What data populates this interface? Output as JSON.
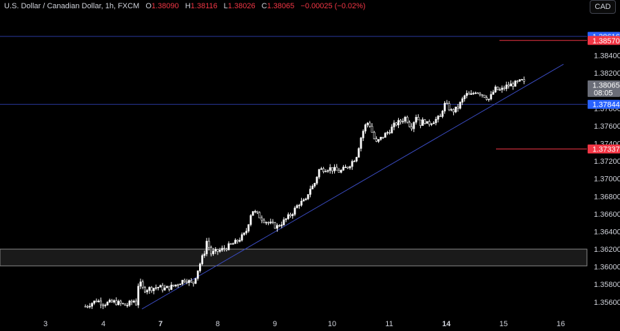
{
  "header": {
    "symbol": "U.S. Dollar / Canadian Dollar, 1h, FXCM",
    "open_label": "O",
    "open_value": "1.38090",
    "high_label": "H",
    "high_value": "1.38116",
    "low_label": "L",
    "low_value": "1.38026",
    "close_label": "C",
    "close_value": "1.38065",
    "change": "−0.00025 (−0.02%)"
  },
  "currency_button": "CAD",
  "colors": {
    "background": "#000000",
    "candle_up": "#ffffff",
    "candle_down": "#000000",
    "trendline": "#2a3a9f",
    "resistance_line": "#2a3a9f",
    "red_line": "#f23645",
    "blue_badge": "#2962ff",
    "red_badge": "#f23645",
    "gray_badge": "#6a6d78"
  },
  "chart_data": {
    "type": "candlestick",
    "ylim": [
      1.3545,
      1.3892
    ],
    "y_ticks": [
      "1.35600",
      "1.35800",
      "1.36000",
      "1.36200",
      "1.36400",
      "1.36600",
      "1.36800",
      "1.37000",
      "1.37200",
      "1.37400",
      "1.37600",
      "1.37800",
      "1.38000",
      "1.38200",
      "1.38400"
    ],
    "y_tick_values": [
      1.356,
      1.358,
      1.36,
      1.362,
      1.364,
      1.366,
      1.368,
      1.37,
      1.372,
      1.374,
      1.376,
      1.378,
      1.38,
      1.382,
      1.384
    ],
    "x_ticks": [
      {
        "label": "3",
        "day": 3,
        "bold": false
      },
      {
        "label": "4",
        "day": 4,
        "bold": false
      },
      {
        "label": "7",
        "day": 7,
        "bold": true
      },
      {
        "label": "8",
        "day": 8,
        "bold": false
      },
      {
        "label": "9",
        "day": 9,
        "bold": false
      },
      {
        "label": "10",
        "day": 10,
        "bold": false
      },
      {
        "label": "11",
        "day": 11,
        "bold": false
      },
      {
        "label": "14",
        "day": 14,
        "bold": true
      },
      {
        "label": "15",
        "day": 15,
        "bold": false
      },
      {
        "label": "16",
        "day": 16,
        "bold": false
      }
    ],
    "price_path": [
      [
        3.7,
        1.3555
      ],
      [
        3.9,
        1.3562
      ],
      [
        4.0,
        1.3558
      ],
      [
        4.2,
        1.356
      ],
      [
        4.4,
        1.3556
      ],
      [
        4.55,
        1.3562
      ],
      [
        4.6,
        1.3553
      ],
      [
        4.62,
        1.3568
      ],
      [
        4.65,
        1.3585
      ],
      [
        4.8,
        1.358
      ],
      [
        5.0,
        1.3574
      ],
      [
        6.4,
        1.3577
      ],
      [
        6.6,
        1.3575
      ],
      [
        6.9,
        1.3578
      ],
      [
        7.1,
        1.3582
      ],
      [
        7.3,
        1.3586
      ],
      [
        7.55,
        1.358
      ],
      [
        7.7,
        1.36
      ],
      [
        7.85,
        1.3618
      ],
      [
        7.9,
        1.363
      ],
      [
        8.0,
        1.3615
      ],
      [
        8.2,
        1.362
      ],
      [
        8.4,
        1.3628
      ],
      [
        8.55,
        1.3638
      ],
      [
        8.65,
        1.3665
      ],
      [
        8.75,
        1.3658
      ],
      [
        8.9,
        1.365
      ],
      [
        9.05,
        1.3645
      ],
      [
        9.2,
        1.3652
      ],
      [
        9.35,
        1.366
      ],
      [
        9.5,
        1.3672
      ],
      [
        9.65,
        1.3675
      ],
      [
        9.7,
        1.3688
      ],
      [
        9.8,
        1.3692
      ],
      [
        9.9,
        1.371
      ],
      [
        10.1,
        1.3712
      ],
      [
        10.3,
        1.3708
      ],
      [
        10.45,
        1.3714
      ],
      [
        10.6,
        1.3725
      ],
      [
        10.7,
        1.375
      ],
      [
        10.8,
        1.376
      ],
      [
        10.9,
        1.3765
      ],
      [
        11.0,
        1.3752
      ],
      [
        11.1,
        1.374
      ],
      [
        11.3,
        1.3748
      ],
      [
        11.5,
        1.3755
      ],
      [
        11.6,
        1.3762
      ],
      [
        11.7,
        1.3765
      ],
      [
        11.8,
        1.377
      ],
      [
        11.9,
        1.3758
      ],
      [
        12.0,
        1.3772
      ],
      [
        12.1,
        1.376
      ],
      [
        12.2,
        1.3768
      ],
      [
        12.4,
        1.3762
      ],
      [
        13.0,
        1.377
      ],
      [
        13.1,
        1.3785
      ],
      [
        13.25,
        1.3782
      ],
      [
        13.4,
        1.3776
      ],
      [
        13.6,
        1.378
      ],
      [
        13.75,
        1.3788
      ],
      [
        13.9,
        1.3796
      ],
      [
        14.05,
        1.3794
      ],
      [
        14.2,
        1.38
      ],
      [
        14.4,
        1.3795
      ],
      [
        14.55,
        1.379
      ],
      [
        14.7,
        1.3802
      ],
      [
        14.85,
        1.38
      ],
      [
        15.0,
        1.3805
      ],
      [
        15.2,
        1.3808
      ],
      [
        15.35,
        1.3811
      ],
      [
        15.45,
        1.3806
      ]
    ],
    "resistance_level": 1.37844,
    "resistance_label": "1.37844",
    "red_level_upper": 1.3857,
    "red_label_upper": "1.38570",
    "red_level_lower": 1.37337,
    "red_label_lower": "1.37337",
    "top_level": 1.38616,
    "top_label": "1.38616",
    "current_price": 1.38065,
    "current_label": "1.38065",
    "countdown": "08:05",
    "support_zone": [
      1.3601,
      1.362
    ],
    "trendline": [
      [
        4.6,
        1.3552
      ],
      [
        16.0,
        1.383
      ]
    ]
  }
}
